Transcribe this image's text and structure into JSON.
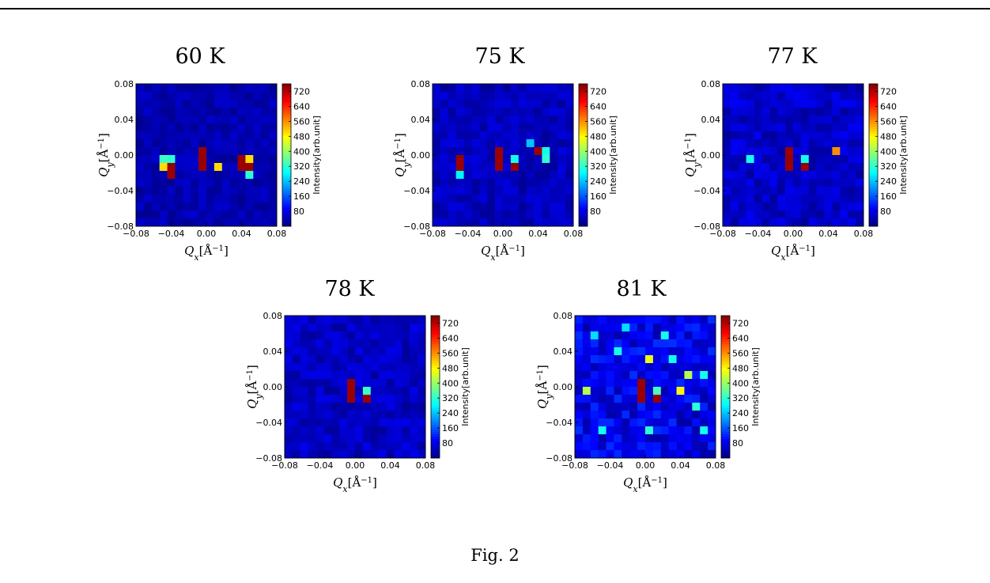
{
  "figure": {
    "caption": "Fig. 2"
  },
  "chart_data": [
    {
      "type": "heatmap",
      "title": "60 K",
      "xlabel": "Q_x[Å^-1]",
      "ylabel": "Q_y[Å^-1]",
      "xlim": [
        -0.08,
        0.08
      ],
      "ylim": [
        -0.08,
        0.08
      ],
      "xticks": [
        "−0.08",
        "−0.04",
        "0.00",
        "0.04",
        "0.08"
      ],
      "yticks": [
        "0.08",
        "0.04",
        "0.00",
        "−0.04",
        "−0.08"
      ],
      "colorbar": {
        "label": "Intensity[arb.unit]",
        "ticks": [
          80,
          160,
          240,
          320,
          400,
          480,
          560,
          640,
          720
        ],
        "range": [
          0,
          760
        ],
        "colormap": "jet"
      },
      "grid_size": 18,
      "background_level": 40,
      "hot_pixels": [
        {
          "qx": -0.05,
          "qy": 0.0,
          "value": 330
        },
        {
          "qx": -0.041,
          "qy": 0.0,
          "value": 320
        },
        {
          "qx": -0.05,
          "qy": -0.009,
          "value": 500
        },
        {
          "qx": -0.041,
          "qy": -0.009,
          "value": 740
        },
        {
          "qx": -0.041,
          "qy": -0.018,
          "value": 740
        },
        {
          "qx": -0.005,
          "qy": 0.005,
          "value": 740
        },
        {
          "qx": -0.005,
          "qy": -0.005,
          "value": 740
        },
        {
          "qx": -0.005,
          "qy": -0.014,
          "value": 740
        },
        {
          "qx": 0.014,
          "qy": -0.014,
          "value": 500
        },
        {
          "qx": 0.041,
          "qy": 0.0,
          "value": 740
        },
        {
          "qx": 0.041,
          "qy": -0.009,
          "value": 740
        },
        {
          "qx": 0.05,
          "qy": 0.0,
          "value": 500
        },
        {
          "qx": 0.05,
          "qy": -0.009,
          "value": 740
        },
        {
          "qx": 0.05,
          "qy": -0.018,
          "value": 320
        }
      ]
    },
    {
      "type": "heatmap",
      "title": "75 K",
      "xlabel": "Q_x[Å^-1]",
      "ylabel": "Q_y[Å^-1]",
      "xlim": [
        -0.08,
        0.08
      ],
      "ylim": [
        -0.08,
        0.08
      ],
      "xticks": [
        "−0.08",
        "−0.04",
        "0.00",
        "0.04",
        "0.08"
      ],
      "yticks": [
        "0.08",
        "0.04",
        "0.00",
        "−0.04",
        "−0.08"
      ],
      "colorbar": {
        "label": "Intensity[arb.unit]",
        "ticks": [
          80,
          160,
          240,
          320,
          400,
          480,
          560,
          640,
          720
        ],
        "range": [
          0,
          760
        ],
        "colormap": "jet"
      },
      "grid_size": 18,
      "background_level": 50,
      "hot_pixels": [
        {
          "qx": -0.045,
          "qy": 0.0,
          "value": 740
        },
        {
          "qx": -0.045,
          "qy": -0.009,
          "value": 740
        },
        {
          "qx": -0.045,
          "qy": -0.018,
          "value": 280
        },
        {
          "qx": -0.005,
          "qy": 0.005,
          "value": 740
        },
        {
          "qx": -0.005,
          "qy": -0.005,
          "value": 740
        },
        {
          "qx": -0.005,
          "qy": -0.014,
          "value": 740
        },
        {
          "qx": 0.009,
          "qy": 0.0,
          "value": 300
        },
        {
          "qx": 0.009,
          "qy": -0.009,
          "value": 740
        },
        {
          "qx": 0.041,
          "qy": 0.005,
          "value": 740
        },
        {
          "qx": 0.045,
          "qy": -0.005,
          "value": 300
        },
        {
          "qx": 0.05,
          "qy": 0.005,
          "value": 300
        },
        {
          "qx": 0.05,
          "qy": -0.005,
          "value": 320
        },
        {
          "qx": 0.027,
          "qy": 0.014,
          "value": 240
        }
      ]
    },
    {
      "type": "heatmap",
      "title": "77 K",
      "xlabel": "Q_x[Å^-1]",
      "ylabel": "Q_y[Å^-1]",
      "xlim": [
        -0.08,
        0.08
      ],
      "ylim": [
        -0.08,
        0.08
      ],
      "xticks": [
        "−0.08",
        "−0.04",
        "0.00",
        "0.04",
        "0.08"
      ],
      "yticks": [
        "0.08",
        "0.04",
        "0.00",
        "−0.04",
        "−0.08"
      ],
      "colorbar": {
        "label": "Intensity[arb.unit]",
        "ticks": [
          80,
          160,
          240,
          320,
          400,
          480,
          560,
          640,
          720
        ],
        "range": [
          0,
          760
        ],
        "colormap": "jet"
      },
      "grid_size": 18,
      "background_level": 60,
      "hot_pixels": [
        {
          "qx": -0.045,
          "qy": -0.005,
          "value": 300
        },
        {
          "qx": -0.005,
          "qy": 0.005,
          "value": 740
        },
        {
          "qx": -0.005,
          "qy": -0.005,
          "value": 740
        },
        {
          "qx": -0.005,
          "qy": -0.014,
          "value": 740
        },
        {
          "qx": 0.009,
          "qy": -0.005,
          "value": 300
        },
        {
          "qx": 0.009,
          "qy": -0.014,
          "value": 740
        },
        {
          "qx": 0.045,
          "qy": 0.005,
          "value": 560
        }
      ]
    },
    {
      "type": "heatmap",
      "title": "78 K",
      "xlabel": "Q_x[Å^-1]",
      "ylabel": "Q_y[Å^-1]",
      "xlim": [
        -0.08,
        0.08
      ],
      "ylim": [
        -0.08,
        0.08
      ],
      "xticks": [
        "−0.08",
        "−0.04",
        "0.00",
        "0.04",
        "0.08"
      ],
      "yticks": [
        "0.08",
        "0.04",
        "0.00",
        "−0.04",
        "−0.08"
      ],
      "colorbar": {
        "label": "Intensity[arb.unit]",
        "ticks": [
          80,
          160,
          240,
          320,
          400,
          480,
          560,
          640,
          720
        ],
        "range": [
          0,
          760
        ],
        "colormap": "jet"
      },
      "grid_size": 18,
      "background_level": 55,
      "hot_pixels": [
        {
          "qx": -0.005,
          "qy": 0.005,
          "value": 740
        },
        {
          "qx": -0.005,
          "qy": -0.005,
          "value": 740
        },
        {
          "qx": -0.005,
          "qy": -0.014,
          "value": 740
        },
        {
          "qx": 0.014,
          "qy": 0.0,
          "value": 330
        },
        {
          "qx": 0.014,
          "qy": -0.009,
          "value": 740
        }
      ]
    },
    {
      "type": "heatmap",
      "title": "81 K",
      "xlabel": "Q_x[Å^-1]",
      "ylabel": "Q_y[Å^-1]",
      "xlim": [
        -0.08,
        0.08
      ],
      "ylim": [
        -0.08,
        0.08
      ],
      "xticks": [
        "−0.08",
        "−0.04",
        "0.00",
        "0.04",
        "0.08"
      ],
      "yticks": [
        "0.08",
        "0.04",
        "0.00",
        "−0.04",
        "−0.08"
      ],
      "colorbar": {
        "label": "Intensity[arb.unit]",
        "ticks": [
          80,
          160,
          240,
          320,
          400,
          480,
          560,
          640,
          720
        ],
        "range": [
          0,
          760
        ],
        "colormap": "jet"
      },
      "grid_size": 18,
      "background_level": 90,
      "hot_pixels": [
        {
          "qx": -0.005,
          "qy": 0.005,
          "value": 740
        },
        {
          "qx": -0.005,
          "qy": -0.005,
          "value": 740
        },
        {
          "qx": -0.005,
          "qy": -0.014,
          "value": 740
        },
        {
          "qx": 0.014,
          "qy": -0.014,
          "value": 740
        },
        {
          "qx": 0.014,
          "qy": 0.0,
          "value": 340
        },
        {
          "qx": -0.068,
          "qy": 0.0,
          "value": 420
        },
        {
          "qx": -0.027,
          "qy": 0.036,
          "value": 300
        },
        {
          "qx": 0.0,
          "qy": 0.032,
          "value": 460
        },
        {
          "qx": 0.036,
          "qy": 0.0,
          "value": 480
        },
        {
          "qx": 0.05,
          "qy": 0.009,
          "value": 420
        },
        {
          "qx": 0.064,
          "qy": 0.009,
          "value": 300
        },
        {
          "qx": 0.027,
          "qy": 0.027,
          "value": 300
        },
        {
          "qx": -0.059,
          "qy": 0.059,
          "value": 260
        },
        {
          "qx": -0.045,
          "qy": -0.045,
          "value": 300
        },
        {
          "qx": 0.0,
          "qy": -0.05,
          "value": 320
        },
        {
          "qx": 0.055,
          "qy": -0.02,
          "value": 320
        },
        {
          "qx": 0.068,
          "qy": -0.045,
          "value": 300
        },
        {
          "qx": -0.018,
          "qy": 0.068,
          "value": 260
        },
        {
          "qx": 0.018,
          "qy": 0.055,
          "value": 300
        }
      ]
    }
  ]
}
